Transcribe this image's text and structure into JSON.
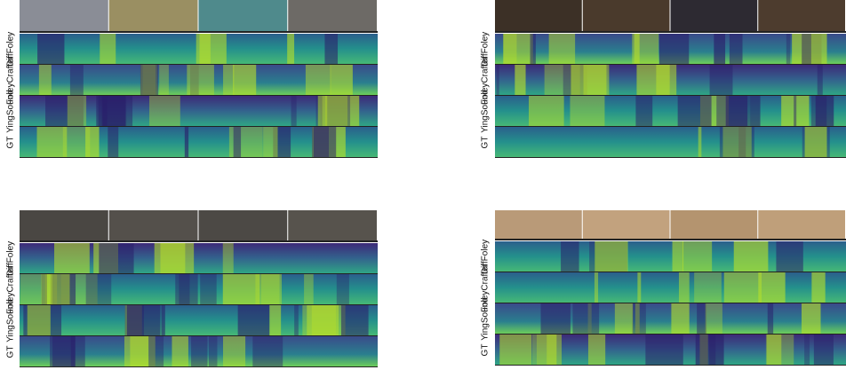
{
  "panels": [
    {
      "labels": [
        "DiffFoley",
        "FoleyCrafter",
        "YingSound",
        "GT"
      ]
    },
    {
      "labels": [
        "DiffFoley",
        "FoleyCrafter",
        "YingSound",
        "GT"
      ]
    },
    {
      "labels": [
        "DiffFoley",
        "FoleyCrafter",
        "YingSound",
        "GT"
      ]
    },
    {
      "labels": [
        "DiffFoley",
        "FoleyCrafter",
        "YingSound",
        "GT"
      ]
    }
  ]
}
